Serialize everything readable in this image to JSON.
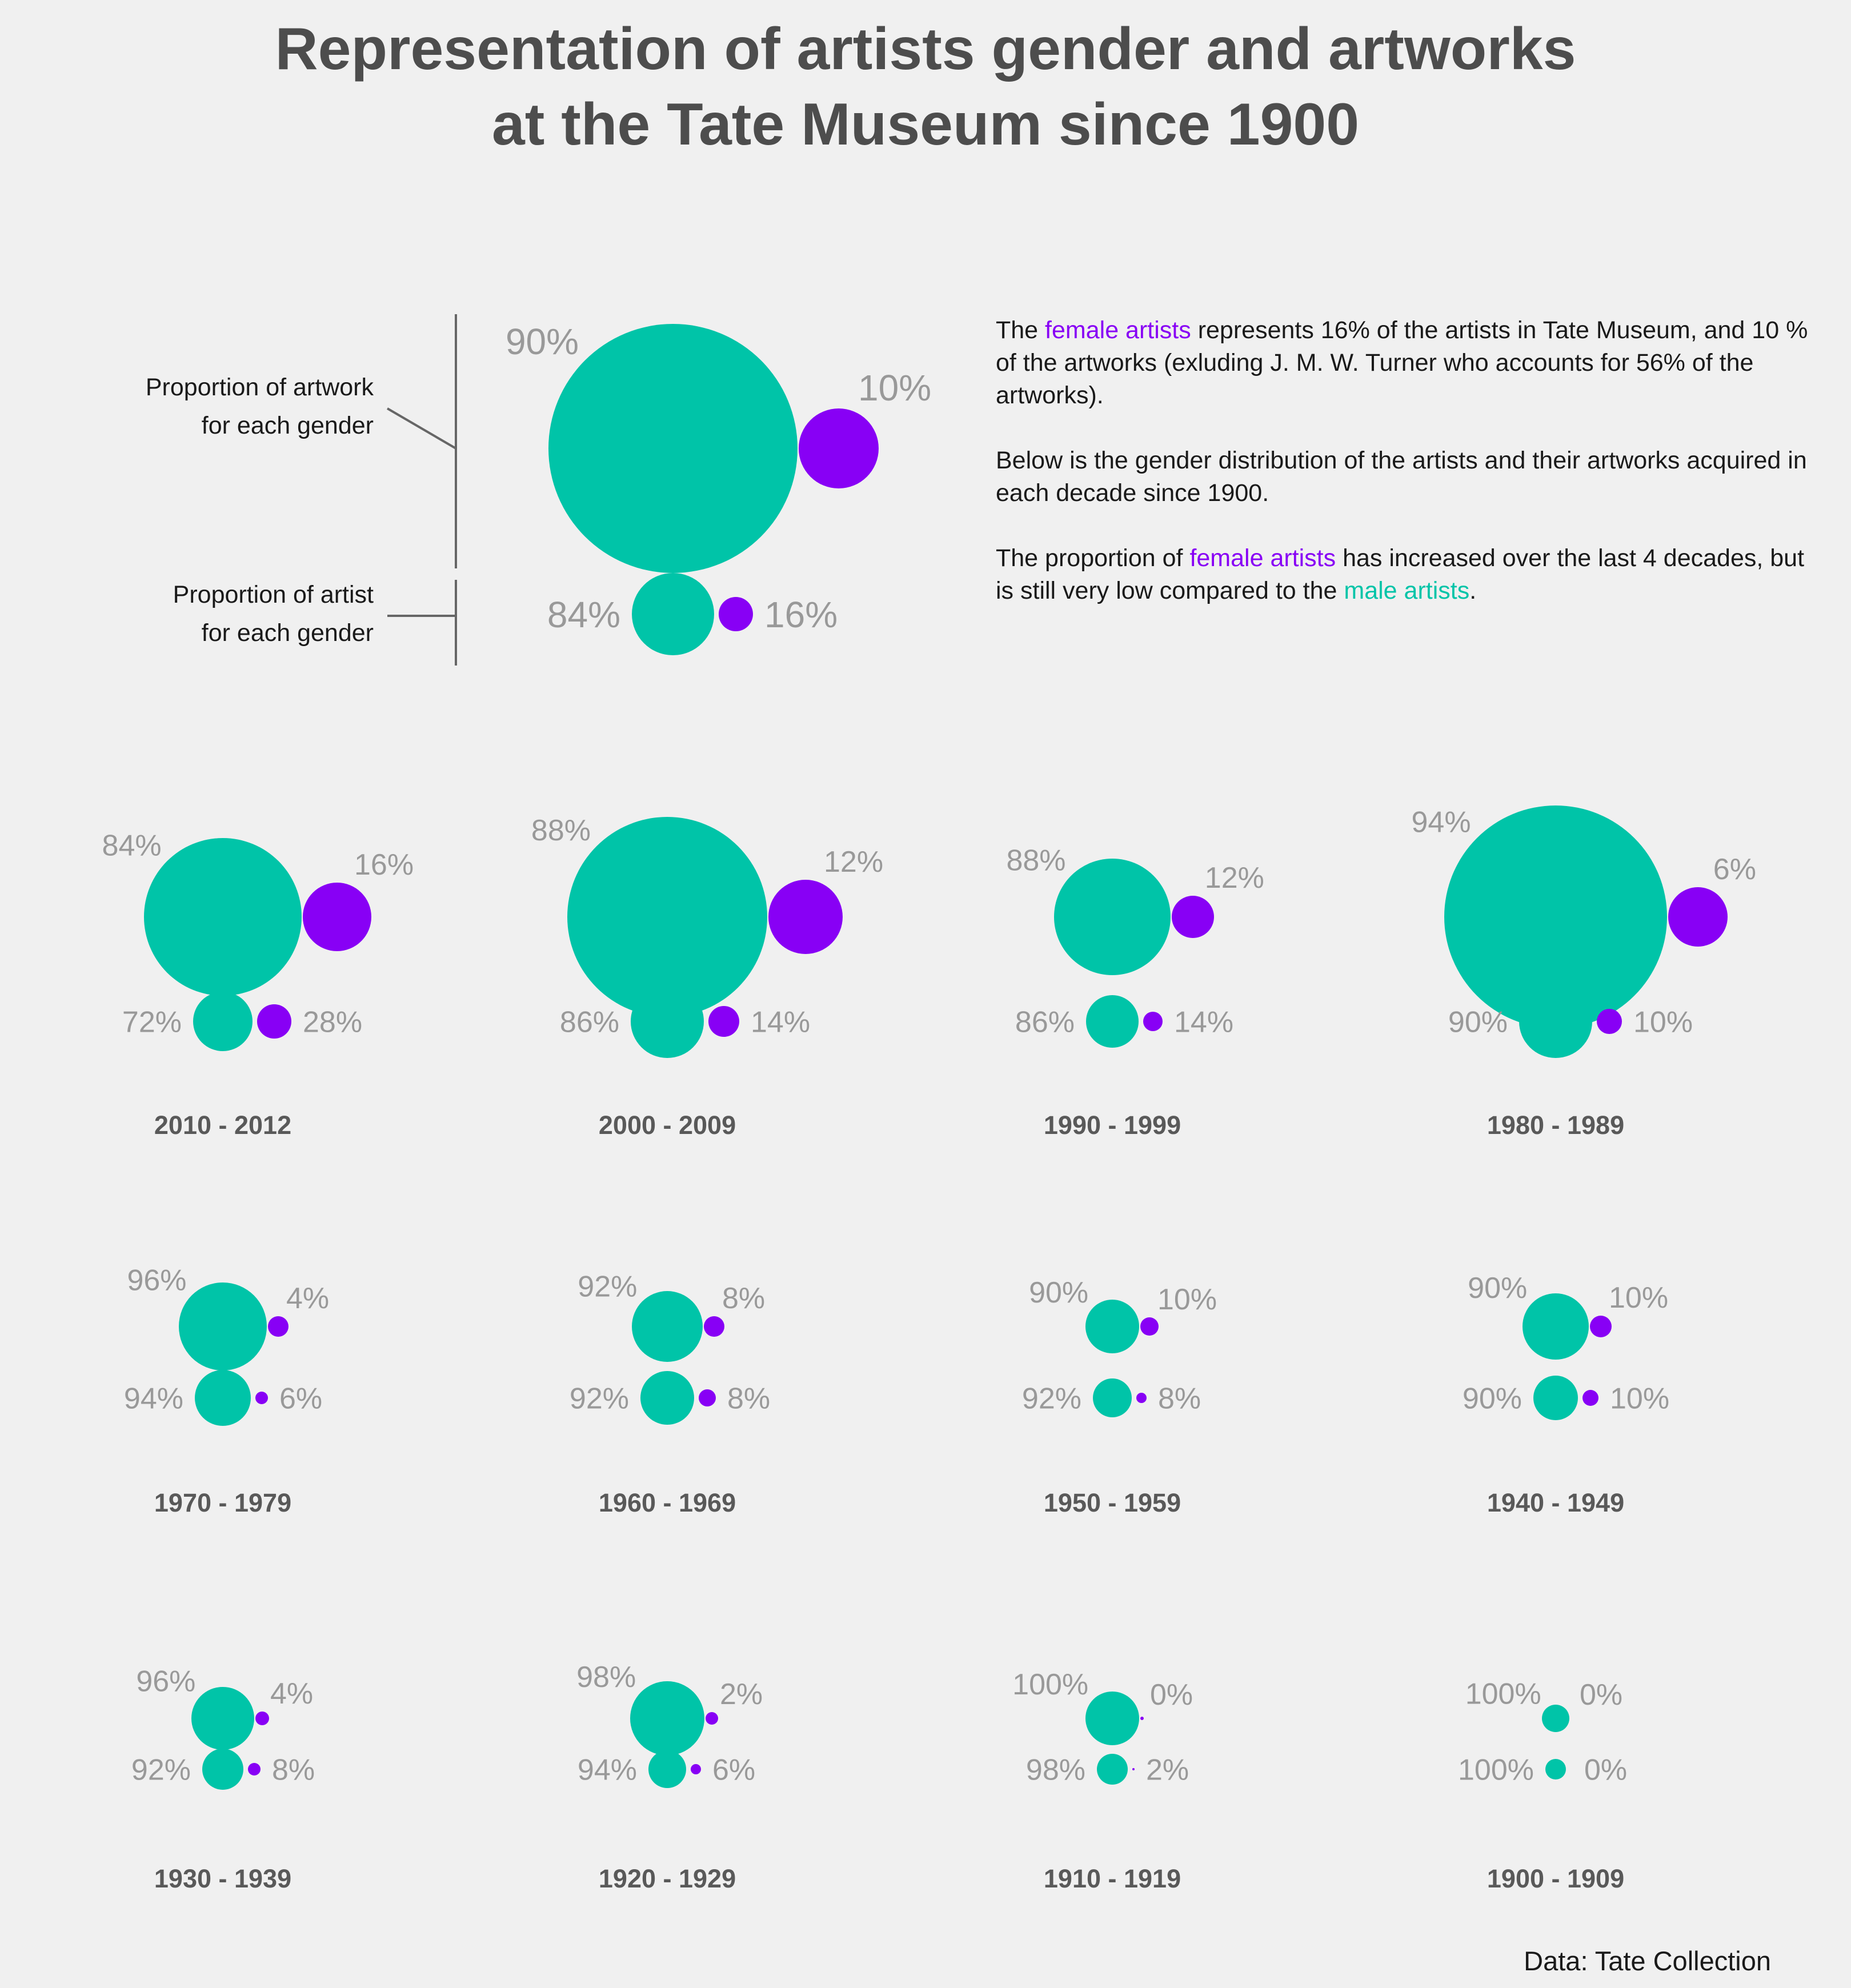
{
  "title": {
    "line1": "Representation of artists gender and artworks",
    "line2": "at the Tate Museum since 1900"
  },
  "colors": {
    "male": "#00c4a8",
    "female": "#8800f5",
    "label": "#999999",
    "period": "#595959"
  },
  "legend": {
    "artwork_line1": "Proportion of artwork",
    "artwork_line2": "for each gender",
    "artist_line1": "Proportion of artist",
    "artist_line2": "for each gender"
  },
  "description": {
    "p1_a": "The ",
    "p1_female": "female artists",
    "p1_b": " represents 16% of the artists in Tate Museum, and 10 % of the artworks (exluding J. M. W. Turner who accounts for 56% of the artworks).",
    "p2": "Below is the gender distribution of the artists and their artworks acquired in each decade since 1900.",
    "p3_a": "The proportion of ",
    "p3_female": "female artists",
    "p3_b": " has increased over the last 4 decades, but is still very low compared to the ",
    "p3_male": "male artists",
    "p3_c": "."
  },
  "source": "Data: Tate Collection",
  "chart_data": {
    "type": "bubble",
    "note_units": "values are percentages; bubble area scales with count",
    "overall": {
      "artwork_male": 90,
      "artwork_female": 10,
      "artist_male": 84,
      "artist_female": 16,
      "artwork_male_label": "90%",
      "artwork_female_label": "10%",
      "artist_male_label": "84%",
      "artist_female_label": "16%"
    },
    "decades": [
      {
        "period": "2010 - 2012",
        "artwork_male": 84,
        "artwork_female": 16,
        "artist_male": 72,
        "artist_female": 28,
        "labels": [
          "84%",
          "16%",
          "72%",
          "28%"
        ]
      },
      {
        "period": "2000 - 2009",
        "artwork_male": 88,
        "artwork_female": 12,
        "artist_male": 86,
        "artist_female": 14,
        "labels": [
          "88%",
          "12%",
          "86%",
          "14%"
        ]
      },
      {
        "period": "1990 - 1999",
        "artwork_male": 88,
        "artwork_female": 12,
        "artist_male": 86,
        "artist_female": 14,
        "labels": [
          "88%",
          "12%",
          "86%",
          "14%"
        ]
      },
      {
        "period": "1980 - 1989",
        "artwork_male": 94,
        "artwork_female": 6,
        "artist_male": 90,
        "artist_female": 10,
        "labels": [
          "94%",
          "6%",
          "90%",
          "10%"
        ]
      },
      {
        "period": "1970 - 1979",
        "artwork_male": 96,
        "artwork_female": 4,
        "artist_male": 94,
        "artist_female": 6,
        "labels": [
          "96%",
          "4%",
          "94%",
          "6%"
        ]
      },
      {
        "period": "1960 - 1969",
        "artwork_male": 92,
        "artwork_female": 8,
        "artist_male": 92,
        "artist_female": 8,
        "labels": [
          "92%",
          "8%",
          "92%",
          "8%"
        ]
      },
      {
        "period": "1950 - 1959",
        "artwork_male": 90,
        "artwork_female": 10,
        "artist_male": 92,
        "artist_female": 8,
        "labels": [
          "90%",
          "10%",
          "92%",
          "8%"
        ]
      },
      {
        "period": "1940 - 1949",
        "artwork_male": 90,
        "artwork_female": 10,
        "artist_male": 90,
        "artist_female": 10,
        "labels": [
          "90%",
          "10%",
          "90%",
          "10%"
        ]
      },
      {
        "period": "1930 - 1939",
        "artwork_male": 96,
        "artwork_female": 4,
        "artist_male": 92,
        "artist_female": 8,
        "labels": [
          "96%",
          "4%",
          "92%",
          "8%"
        ]
      },
      {
        "period": "1920 - 1929",
        "artwork_male": 98,
        "artwork_female": 2,
        "artist_male": 94,
        "artist_female": 6,
        "labels": [
          "98%",
          "2%",
          "94%",
          "6%"
        ]
      },
      {
        "period": "1910 - 1919",
        "artwork_male": 100,
        "artwork_female": 0,
        "artist_male": 98,
        "artist_female": 2,
        "labels": [
          "100%",
          "0%",
          "98%",
          "2%"
        ]
      },
      {
        "period": "1900 - 1909",
        "artwork_male": 100,
        "artwork_female": 0,
        "artist_male": 100,
        "artist_female": 0,
        "labels": [
          "100%",
          "0%",
          "100%",
          "0%"
        ]
      }
    ]
  }
}
